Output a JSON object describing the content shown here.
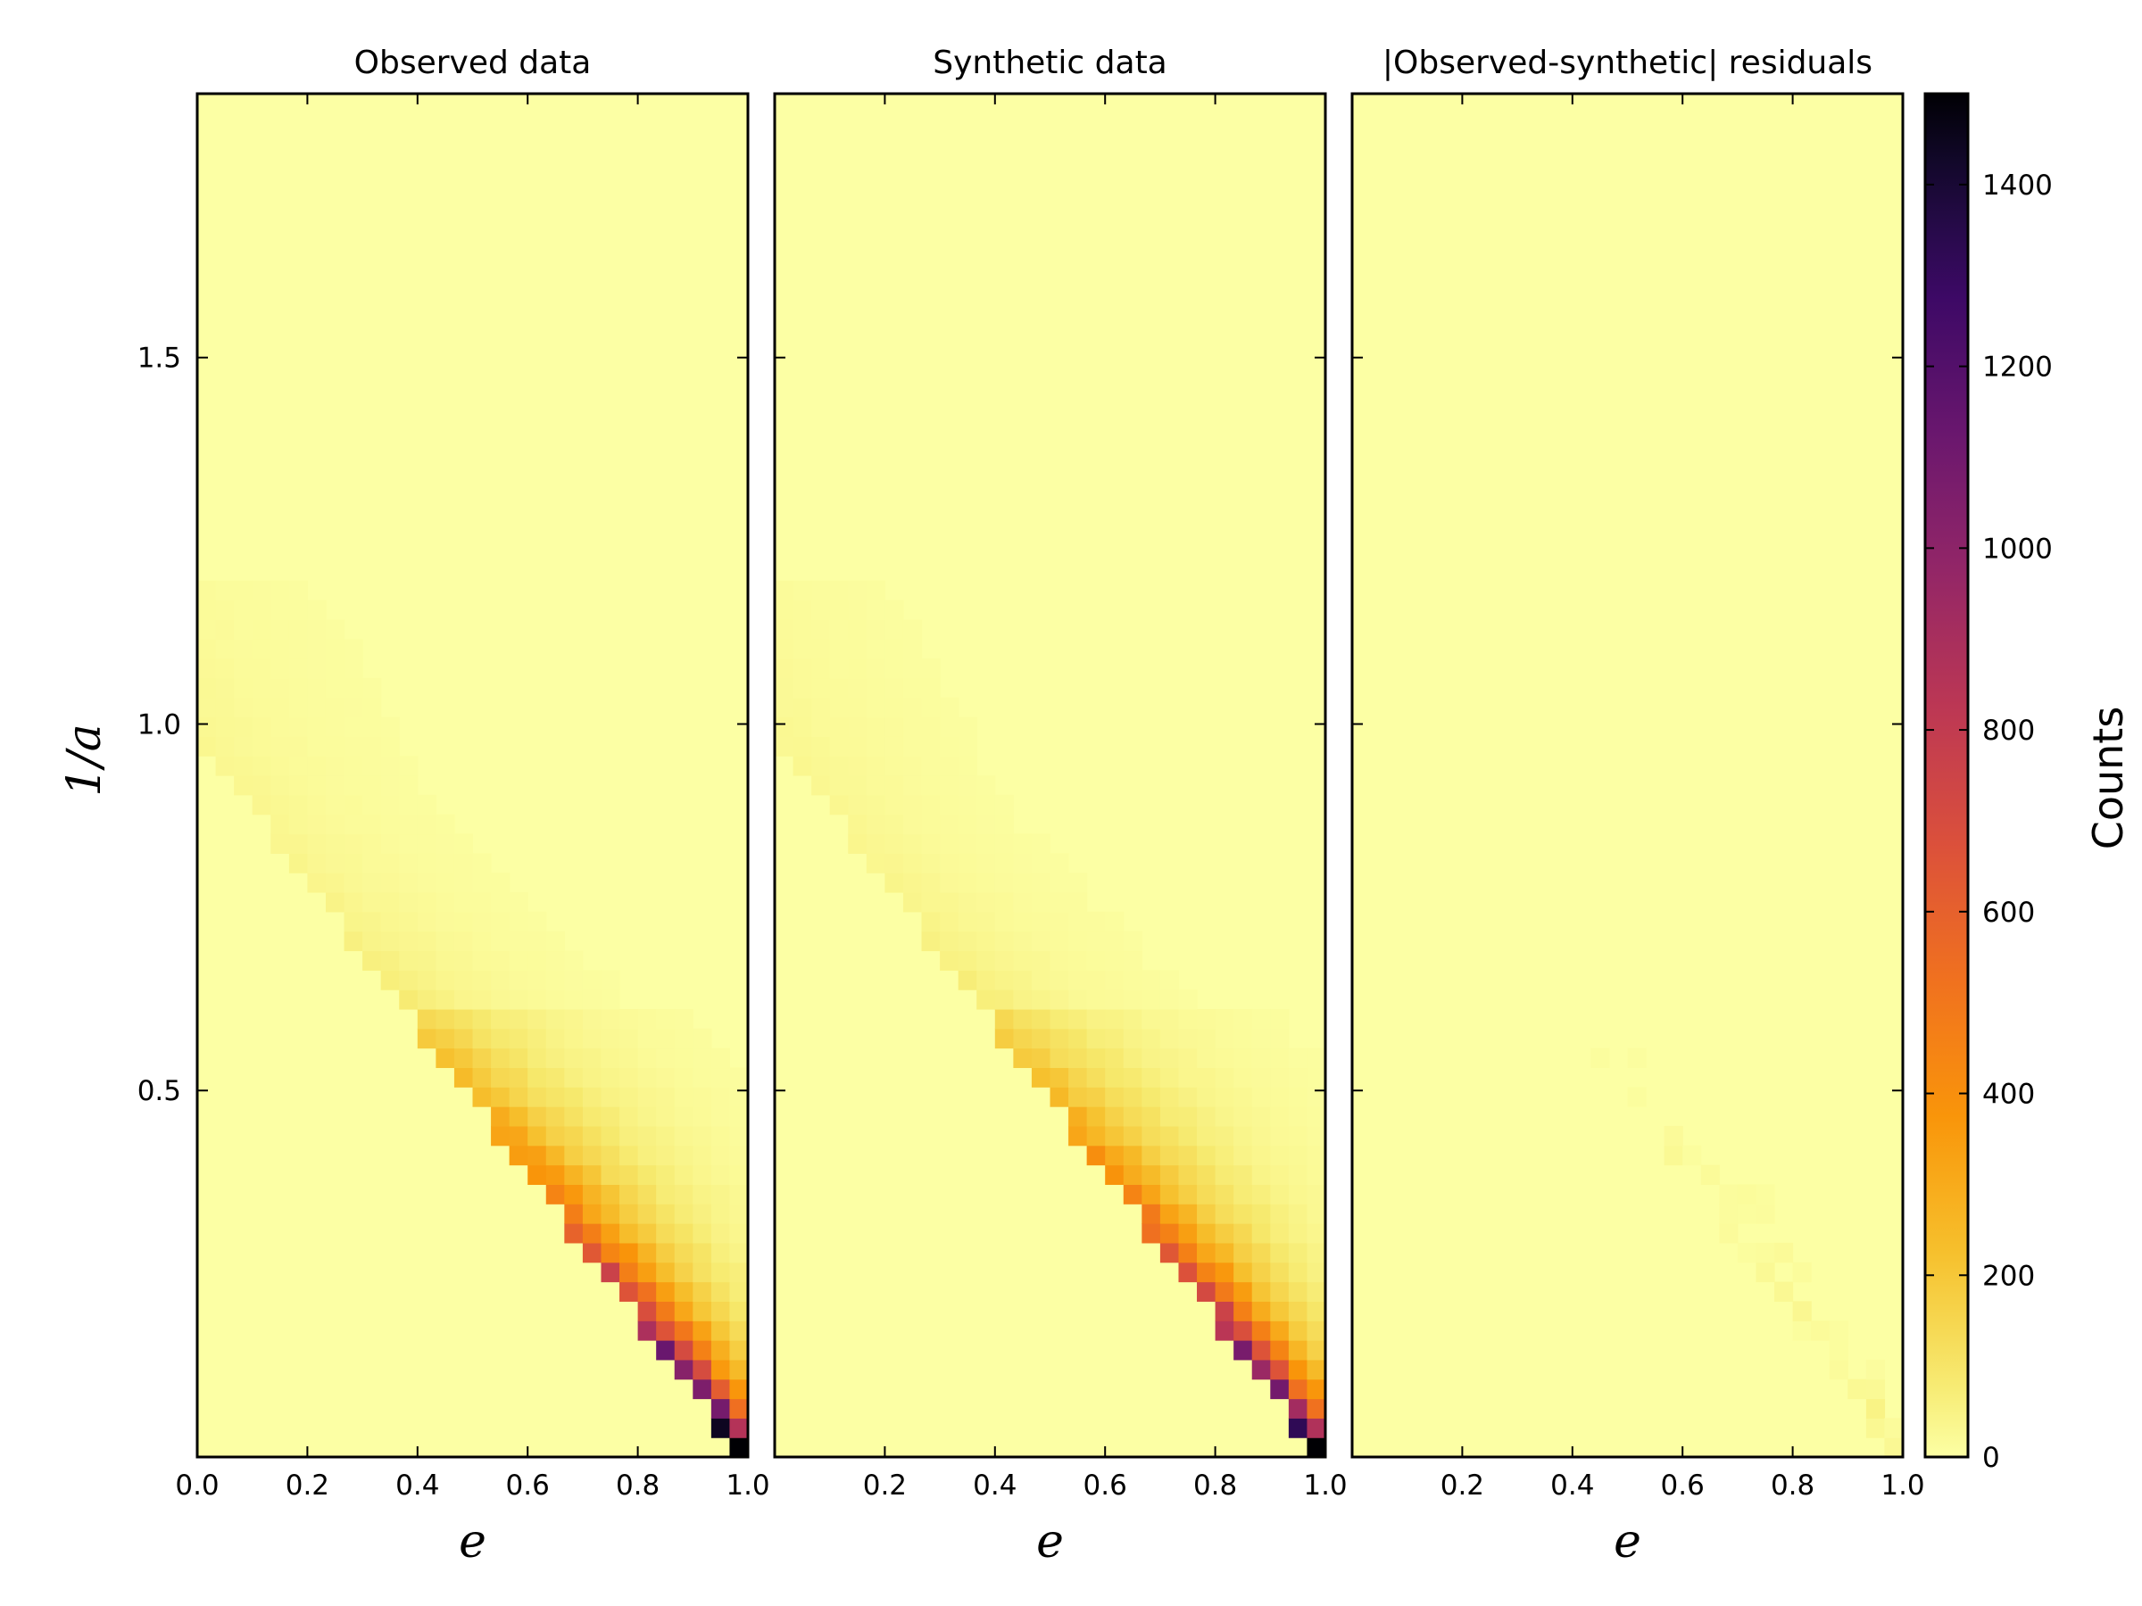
{
  "chart_data": {
    "type": "heatmap",
    "panels": [
      {
        "title": "Observed data",
        "xlabel": "e",
        "kind": "observed"
      },
      {
        "title": "Synthetic data",
        "xlabel": "e",
        "kind": "synthetic"
      },
      {
        "title": "|Observed-synthetic| residuals",
        "xlabel": "e",
        "kind": "residual"
      }
    ],
    "ylabel": "1/a",
    "xlim": [
      0.0,
      1.0
    ],
    "ylim": [
      0.0,
      1.86
    ],
    "xticks_first": [
      "0.0",
      "0.2",
      "0.4",
      "0.6",
      "0.8",
      "1.0"
    ],
    "xticks_other": [
      "0.2",
      "0.4",
      "0.6",
      "0.8",
      "1.0"
    ],
    "xtick_values": [
      0.0,
      0.2,
      0.4,
      0.6,
      0.8,
      1.0
    ],
    "yticks": [
      "0.5",
      "1.0",
      "1.5"
    ],
    "ytick_values": [
      0.5,
      1.0,
      1.5
    ],
    "grid": "off",
    "colorbar": {
      "label": "Counts",
      "min": 0,
      "max": 1500,
      "ticks": [
        "0",
        "200",
        "400",
        "600",
        "800",
        "1000",
        "1200",
        "1400"
      ],
      "tick_values": [
        0,
        200,
        400,
        600,
        800,
        1000,
        1200,
        1400
      ],
      "colormap": "inferno_r"
    },
    "observations": {
      "bins": "about 30 bins in e and 70 bins in 1/a",
      "boundary": "counts are concentrated along the line 1/a = 1 - e",
      "peak": "maximum about 1500 counts near e = 1, 1/a = 0.03",
      "residuals": "residuals are mostly below 100, with a few bins around 150-200 near e = 0.88, 1/a = 0.12"
    }
  }
}
